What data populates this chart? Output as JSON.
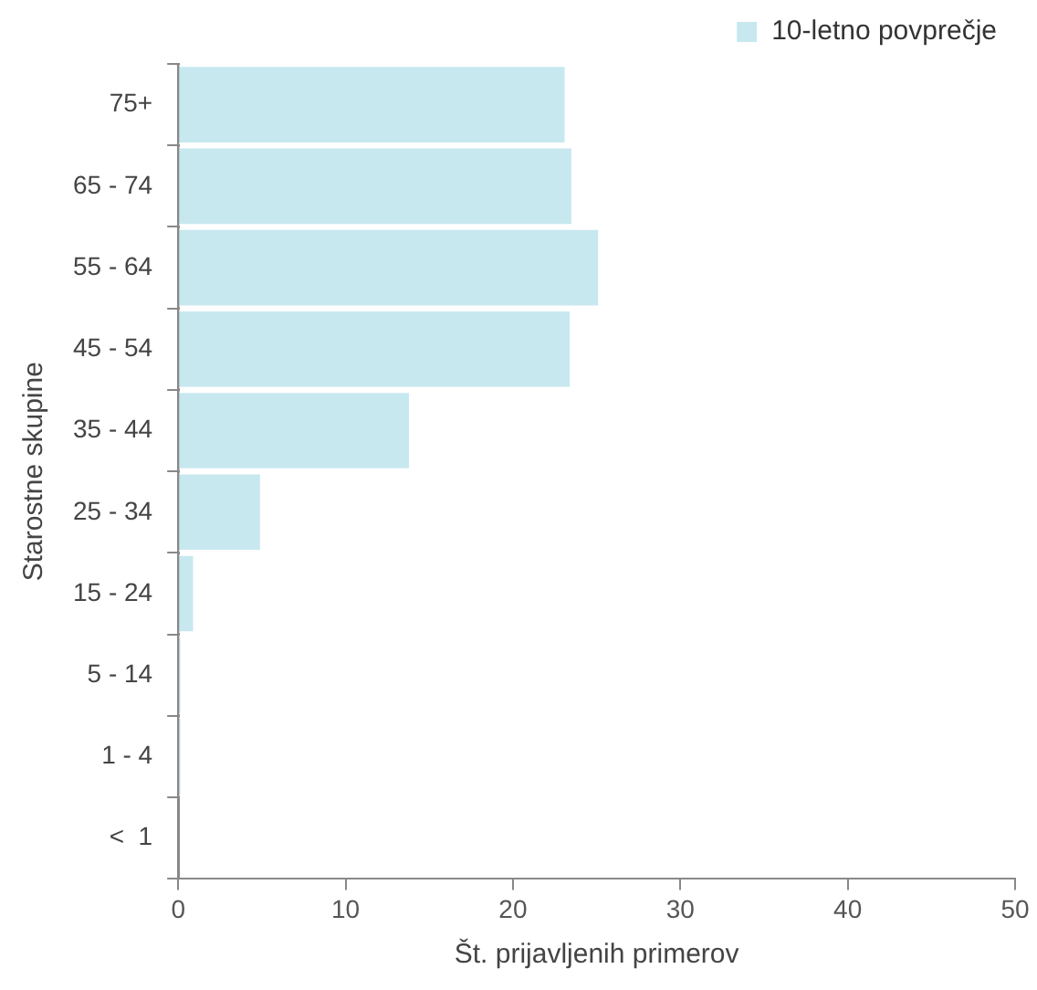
{
  "chart_data": {
    "type": "bar",
    "orientation": "horizontal",
    "xlabel": "Št. prijavljenih primerov",
    "ylabel": "Starostne skupine",
    "categories": [
      "75+",
      "65 - 74",
      "55 - 64",
      "45 - 54",
      "35 - 44",
      "25 - 34",
      "15 - 24",
      "5 - 14",
      "1 - 4",
      "<  1"
    ],
    "series": [
      {
        "name": "10-letno povprečje",
        "color": "#c8e8f0",
        "values": [
          23.2,
          23.6,
          25.2,
          23.5,
          13.9,
          5.0,
          1.0,
          0.2,
          0.2,
          0
        ]
      }
    ],
    "xlim": [
      0,
      50
    ],
    "xticks": [
      0,
      10,
      20,
      30,
      40,
      50
    ],
    "grid": false,
    "legend": "top right"
  }
}
